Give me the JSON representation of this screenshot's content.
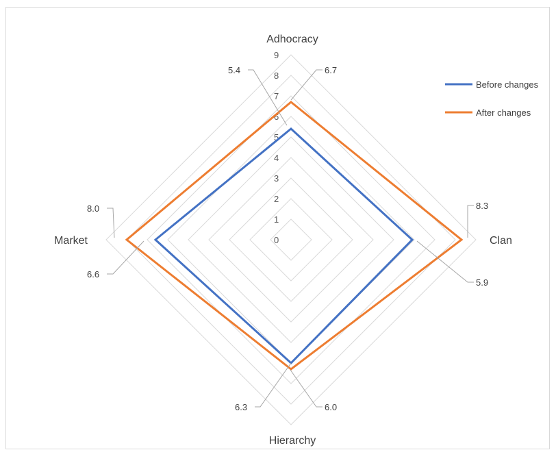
{
  "chart_data": {
    "type": "radar",
    "axes": [
      "Adhocracy",
      "Clan",
      "Hierarchy",
      "Market"
    ],
    "r_ticks": [
      "0",
      "1",
      "2",
      "3",
      "4",
      "5",
      "6",
      "7",
      "8",
      "9"
    ],
    "rlim": [
      0,
      9
    ],
    "grid": true,
    "legend_position": "top-right",
    "series": [
      {
        "name": "Before changes",
        "color": "#4472C4",
        "values": [
          5.4,
          5.9,
          6.0,
          6.6
        ],
        "labels": [
          "5.4",
          "5.9",
          "6.0",
          "6.6"
        ]
      },
      {
        "name": "After changes",
        "color": "#ED7D31",
        "values": [
          6.7,
          8.3,
          6.3,
          8.0
        ],
        "labels": [
          "6.7",
          "8.3",
          "6.3",
          "8.0"
        ]
      }
    ]
  }
}
